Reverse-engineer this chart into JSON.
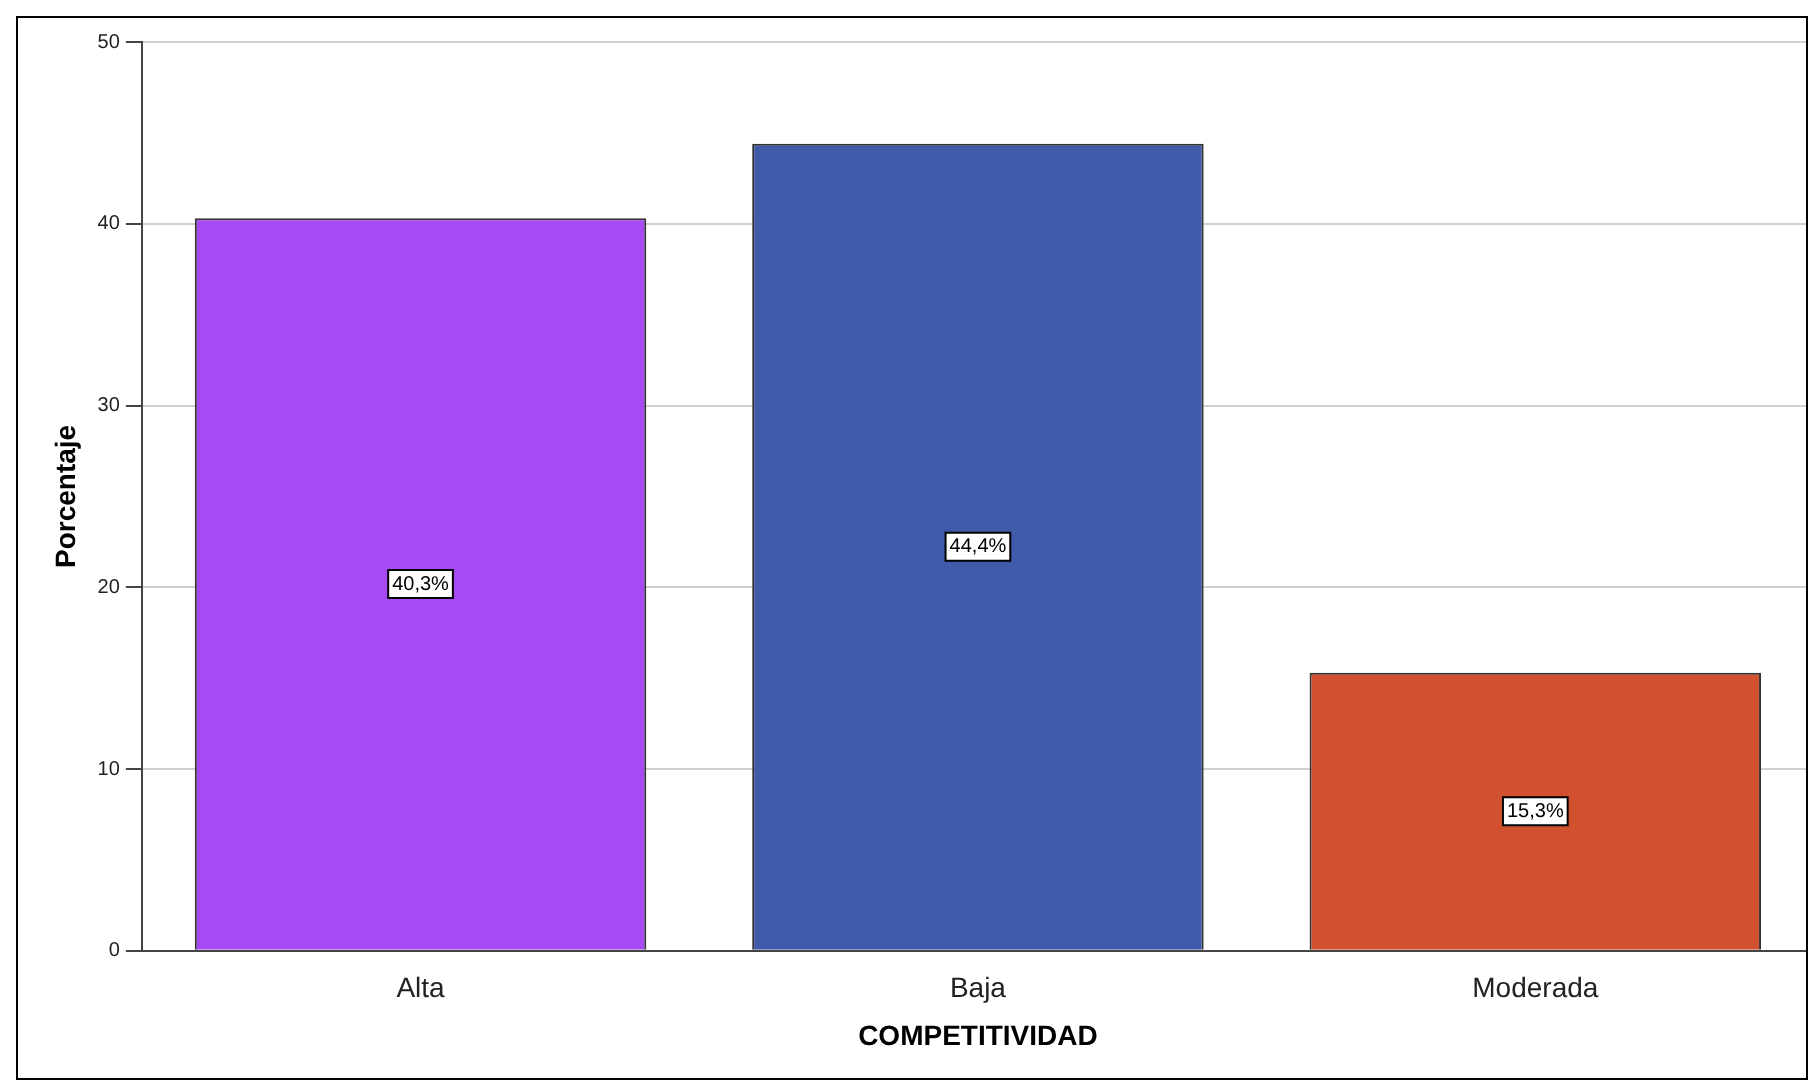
{
  "chart_data": {
    "type": "bar",
    "xlabel": "COMPETITIVIDAD",
    "ylabel": "Porcentaje",
    "categories": [
      "Alta",
      "Baja",
      "Moderada"
    ],
    "values": [
      40.3,
      44.4,
      15.3
    ],
    "colors": [
      "#a64bf4",
      "#3f5aa8",
      "#d0502f"
    ],
    "value_labels": [
      "40,3%",
      "44,4%",
      "15,3%"
    ],
    "ylim": [
      0,
      50
    ],
    "yticks": [
      0,
      10,
      20,
      30,
      40,
      50
    ],
    "grid": "y",
    "legend": false
  }
}
